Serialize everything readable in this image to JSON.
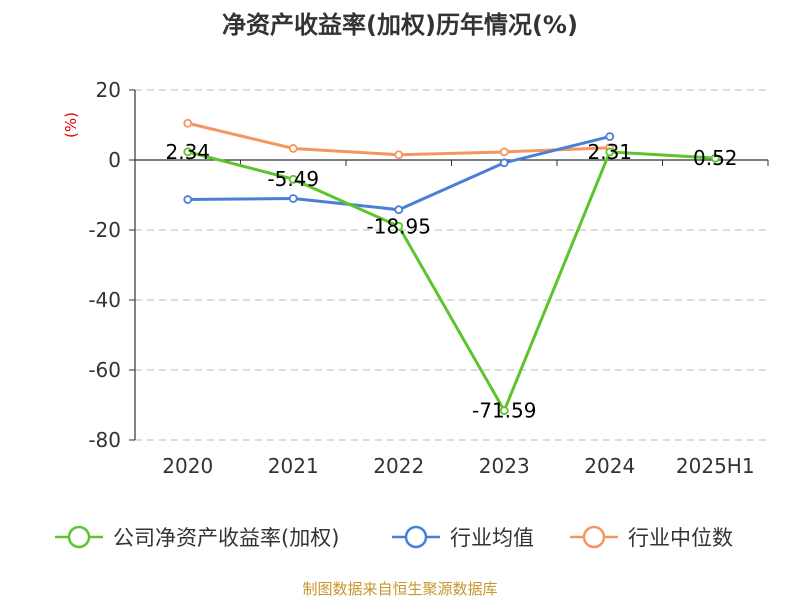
{
  "chart_data": {
    "type": "line",
    "title": "净资产收益率(加权)历年情况(%)",
    "ylabel": "(%)",
    "xlabel": "",
    "ylim": [
      -80,
      20
    ],
    "yticks": [
      20,
      0,
      -20,
      -40,
      -60,
      -80
    ],
    "grid": true,
    "legend_position": "bottom",
    "categories": [
      "2020",
      "2021",
      "2022",
      "2023",
      "2024",
      "2025H1"
    ],
    "series": [
      {
        "name": "公司净资产收益率(加权)",
        "color": "#5ec42d",
        "values": [
          2.34,
          -5.49,
          -18.95,
          -71.59,
          2.31,
          0.52
        ],
        "labels": [
          "2.34",
          "-5.49",
          "-18.95",
          "-71.59",
          "2.31",
          "0.52"
        ]
      },
      {
        "name": "行业均值",
        "color": "#4a7fd8",
        "values": [
          -11.3,
          -11.0,
          -14.2,
          -0.8,
          6.7,
          null
        ]
      },
      {
        "name": "行业中位数",
        "color": "#f59560",
        "values": [
          10.5,
          3.3,
          1.5,
          2.3,
          3.5,
          null
        ]
      }
    ]
  },
  "source": "制图数据来自恒生聚源数据库"
}
